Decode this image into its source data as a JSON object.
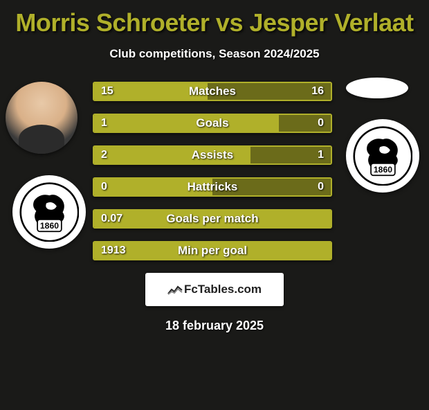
{
  "title": "Morris Schroeter vs Jesper Verlaat",
  "subtitle": "Club competitions, Season 2024/2025",
  "colors": {
    "background": "#1a1a18",
    "accent": "#b0b02a",
    "accent_dark": "#6b6b1a",
    "text": "#ffffff"
  },
  "club_badge": {
    "year": "1860",
    "bg": "#ffffff",
    "fg": "#000000"
  },
  "bars": [
    {
      "label": "Matches",
      "left": "15",
      "right": "16",
      "left_pct": 48,
      "right_pct": 52,
      "two_sided": true
    },
    {
      "label": "Goals",
      "left": "1",
      "right": "0",
      "left_pct": 78,
      "right_pct": 22,
      "two_sided": true
    },
    {
      "label": "Assists",
      "left": "2",
      "right": "1",
      "left_pct": 66,
      "right_pct": 34,
      "two_sided": true
    },
    {
      "label": "Hattricks",
      "left": "0",
      "right": "0",
      "left_pct": 50,
      "right_pct": 50,
      "two_sided": true
    },
    {
      "label": "Goals per match",
      "left": "0.07",
      "right": "",
      "left_pct": 100,
      "right_pct": 0,
      "two_sided": false
    },
    {
      "label": "Min per goal",
      "left": "1913",
      "right": "",
      "left_pct": 100,
      "right_pct": 0,
      "two_sided": false
    }
  ],
  "attribution": "FcTables.com",
  "date": "18 february 2025"
}
